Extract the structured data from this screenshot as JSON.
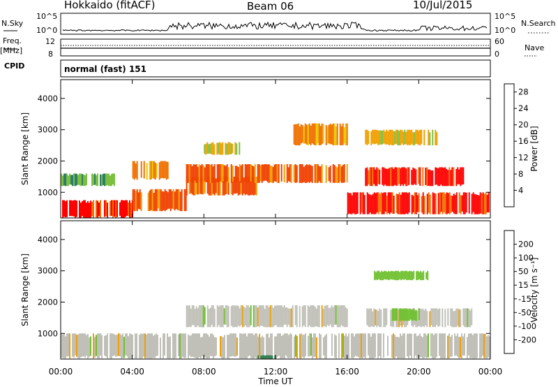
{
  "header": {
    "station": "Hokkaido (fitACF)",
    "beam": "Beam 06",
    "date": "10/Jul/2015"
  },
  "panel_labels": {
    "nsky": "N.Sky",
    "nsearch": "N.Search",
    "freq_top": "Freq.",
    "freq_unit": "[MHz]",
    "nave": "Nave",
    "cpid": "CPID",
    "cpid_value": "normal (fast) 151"
  },
  "nsky_axis": {
    "top": "10^5",
    "bottom": "10^0"
  },
  "freq_axis": {
    "top": "12",
    "bottom": "8"
  },
  "nave_axis": {
    "top": "60",
    "bottom": "0"
  },
  "colors": {
    "power_scale": [
      "#0a14e6",
      "#1e46a0",
      "#2e7d6e",
      "#50a060",
      "#7cc040",
      "#e8c800",
      "#f0a000",
      "#f07000",
      "#f04000",
      "#ff0000"
    ],
    "velocity_scale": [
      "#ff0000",
      "#f04000",
      "#f07000",
      "#f0a000",
      "#e8c800",
      "#c0c0b8",
      "#70c030",
      "#2e7d4e",
      "#1e46a0",
      "#0a14e6"
    ]
  },
  "chart_data": [
    {
      "type": "heatmap",
      "title": "Power",
      "xlabel": "Time UT",
      "ylabel": "Slant Range [km]",
      "x_ticks": [
        "00:00",
        "04:00",
        "08:00",
        "12:00",
        "16:00",
        "20:00",
        "00:00"
      ],
      "y_ticks": [
        "1000",
        "2000",
        "3000",
        "4000"
      ],
      "ylim": [
        180,
        4600
      ],
      "xlim_hours": [
        0,
        24
      ],
      "colorbar": {
        "label": "Power [dB]",
        "ticks": [
          "4",
          "8",
          "12",
          "16",
          "20",
          "24",
          "28"
        ],
        "range": [
          0,
          30
        ]
      },
      "regions": [
        {
          "t0": 0,
          "t1": 4,
          "r0": 180,
          "r1": 750,
          "value": 30
        },
        {
          "t0": 4,
          "t1": 7,
          "r0": 400,
          "r1": 1100,
          "value": 28
        },
        {
          "t0": 7,
          "t1": 11,
          "r0": 900,
          "r1": 1500,
          "value": 28
        },
        {
          "t0": 7,
          "t1": 16,
          "r0": 1300,
          "r1": 1900,
          "value": 28
        },
        {
          "t0": 17,
          "t1": 22.5,
          "r0": 1200,
          "r1": 1800,
          "value": 30
        },
        {
          "t0": 16,
          "t1": 24,
          "r0": 300,
          "r1": 1000,
          "value": 30
        },
        {
          "t0": 13,
          "t1": 16,
          "r0": 2500,
          "r1": 3200,
          "value": 22
        },
        {
          "t0": 8,
          "t1": 10,
          "r0": 2200,
          "r1": 2600,
          "value": 20
        },
        {
          "t0": 17,
          "t1": 21,
          "r0": 2500,
          "r1": 3000,
          "value": 20
        },
        {
          "t0": 4,
          "t1": 6,
          "r0": 1400,
          "r1": 2000,
          "value": 22
        },
        {
          "t0": 0,
          "t1": 3,
          "r0": 1200,
          "r1": 1600,
          "value": 14
        }
      ]
    },
    {
      "type": "heatmap",
      "title": "Velocity",
      "xlabel": "Time UT",
      "ylabel": "Slant Range [km]",
      "x_ticks": [
        "00:00",
        "04:00",
        "08:00",
        "12:00",
        "16:00",
        "20:00",
        "00:00"
      ],
      "y_ticks": [
        "1000",
        "2000",
        "3000",
        "4000"
      ],
      "ylim": [
        180,
        4600
      ],
      "xlim_hours": [
        0,
        24
      ],
      "colorbar": {
        "label": "Velocity [m s⁻¹]",
        "ticks": [
          "200",
          "100",
          "50",
          "15",
          "-15",
          "-50",
          "-100",
          "-200"
        ]
      },
      "regions": [
        {
          "t0": 0,
          "t1": 24,
          "r0": 200,
          "r1": 1000,
          "value": 0
        },
        {
          "t0": 7,
          "t1": 16,
          "r0": 1200,
          "r1": 1900,
          "value": 0
        },
        {
          "t0": 17,
          "t1": 23,
          "r0": 1200,
          "r1": 1800,
          "value": 0
        },
        {
          "t0": 18.5,
          "t1": 20,
          "r0": 1400,
          "r1": 1800,
          "value": 40
        },
        {
          "t0": 17.5,
          "t1": 20.5,
          "r0": 2700,
          "r1": 3000,
          "value": 40
        },
        {
          "t0": 11,
          "t1": 12,
          "r0": 180,
          "r1": 300,
          "value": 80
        }
      ]
    }
  ]
}
